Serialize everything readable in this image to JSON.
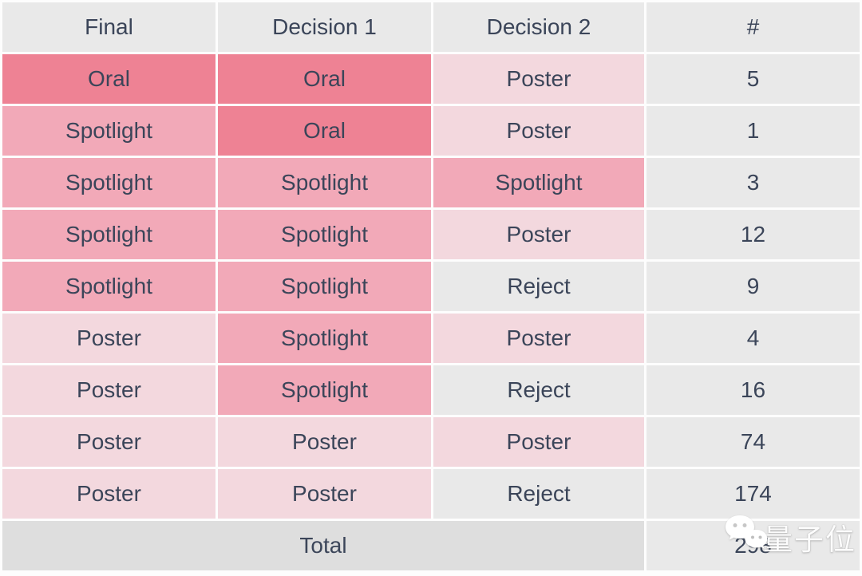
{
  "chart_data": {
    "type": "table",
    "title": "",
    "columns": [
      "Final",
      "Decision 1",
      "Decision 2",
      "#"
    ],
    "rows": [
      [
        "Oral",
        "Oral",
        "Poster",
        "5"
      ],
      [
        "Spotlight",
        "Oral",
        "Poster",
        "1"
      ],
      [
        "Spotlight",
        "Spotlight",
        "Spotlight",
        "3"
      ],
      [
        "Spotlight",
        "Spotlight",
        "Poster",
        "12"
      ],
      [
        "Spotlight",
        "Spotlight",
        "Reject",
        "9"
      ],
      [
        "Poster",
        "Spotlight",
        "Poster",
        "4"
      ],
      [
        "Poster",
        "Spotlight",
        "Reject",
        "16"
      ],
      [
        "Poster",
        "Poster",
        "Poster",
        "74"
      ],
      [
        "Poster",
        "Poster",
        "Reject",
        "174"
      ]
    ],
    "total": {
      "label": "Total",
      "value": "298"
    },
    "legend_semantics": {
      "oral_cells": "dark rose highlight",
      "spotlight_cells": "medium pink highlight",
      "poster_cells": "pale pink highlight",
      "reject_and_count_cells": "light gray"
    }
  },
  "colors": {
    "oral": "#ee8294",
    "spotlight": "#f2a9b8",
    "poster": "#f3d8de",
    "neutral": "#e9e9e9",
    "total_bg": "#dedede",
    "text": "#3b4559",
    "page_bg": "#fdfdfd"
  },
  "watermark": {
    "icon": "wechat-icon",
    "text": "量子位"
  }
}
